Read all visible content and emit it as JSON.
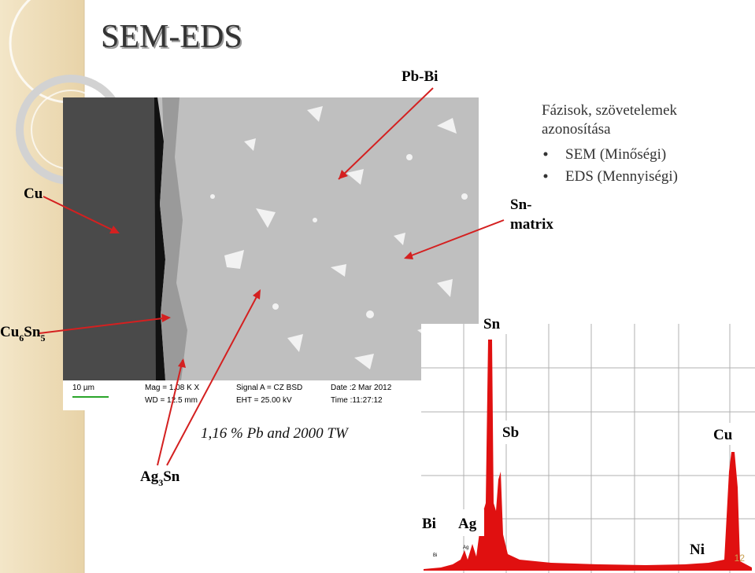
{
  "title": "SEM-EDS",
  "labels": {
    "pb_bi": "Pb-Bi",
    "cu": "Cu",
    "sn_matrix": [
      "Sn-",
      "matrix"
    ],
    "cu6sn5": [
      "Cu",
      "6",
      "Sn",
      "5"
    ],
    "ag3sn": [
      "Ag",
      "3",
      "Sn"
    ]
  },
  "text_block": {
    "heading": [
      "Fázisok, szövetelemek",
      "azonosítása"
    ],
    "bullets": [
      "SEM (Minőségi)",
      "EDS (Mennyiségi)"
    ]
  },
  "sem_info": {
    "scale": "10 µm",
    "mag": "Mag = 1.08 K X",
    "wd": "WD = 12.5 mm",
    "signal": "Signal A = CZ BSD",
    "eht": "EHT = 25.00 kV",
    "date": "Date :2 Mar 2012",
    "time": "Time :11:27:12"
  },
  "caption": "1,16 % Pb and 2000 TW",
  "spectrum": {
    "peaks": [
      "Sn",
      "Sb",
      "Cu",
      "Bi",
      "Ag",
      "Ni"
    ],
    "small": [
      "Bi",
      "Ag"
    ]
  },
  "page_number": "12"
}
